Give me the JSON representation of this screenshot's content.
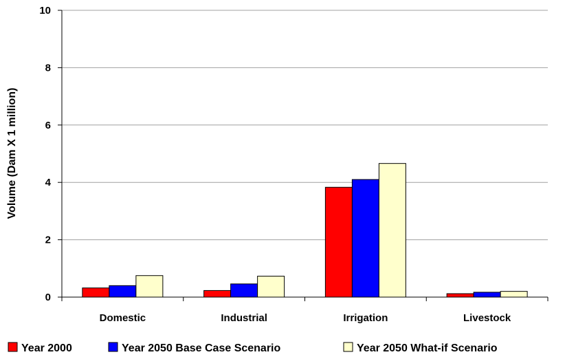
{
  "chart_data": {
    "type": "bar",
    "title": "",
    "xlabel": "",
    "ylabel": "Volume (Dam X 1 million)",
    "ylim": [
      0,
      10
    ],
    "yticks": [
      "0",
      "2",
      "4",
      "6",
      "8",
      "10"
    ],
    "grid": true,
    "legend_position": "bottom",
    "categories": [
      "Domestic",
      "Industrial",
      "Irrigation",
      "Livestock"
    ],
    "series": [
      {
        "name": "Year 2000",
        "color": "#ff0000",
        "values": [
          0.32,
          0.23,
          3.83,
          0.12
        ]
      },
      {
        "name": "Year 2050 Base Case Scenario",
        "color": "#0000ff",
        "values": [
          0.4,
          0.46,
          4.1,
          0.17
        ]
      },
      {
        "name": "Year 2050 What-if Scenario",
        "color": "#ffffcc",
        "values": [
          0.75,
          0.73,
          4.66,
          0.2
        ]
      }
    ]
  }
}
